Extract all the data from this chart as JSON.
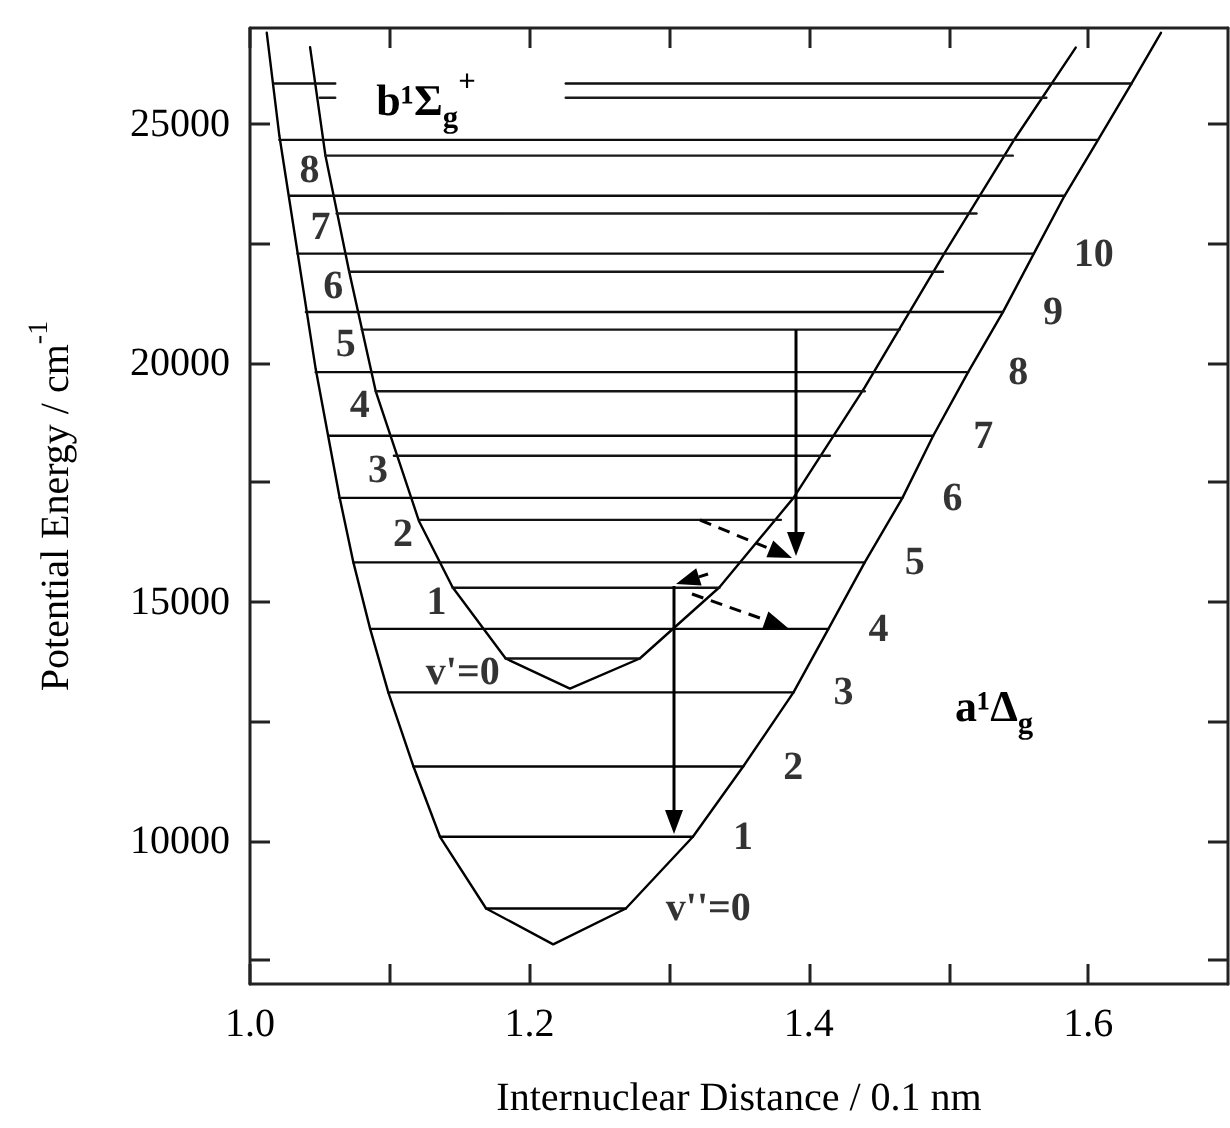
{
  "chart_data": {
    "type": "line",
    "xlabel": "Internuclear Distance / 0.1 nm",
    "ylabel": "Potential Energy / cm$^{-1}$",
    "xlim": [
      1.0,
      1.7
    ],
    "ylim": [
      7000,
      27000
    ],
    "xticks": [
      {
        "value": 1,
        "label": "1.0"
      },
      {
        "value": 1.1,
        "label": null
      },
      1.2,
      {
        "value": 1.3,
        "label": null
      },
      1.4,
      {
        "value": 1.5,
        "label": null
      },
      1.6
    ],
    "yticks": [
      {
        "value": 7500,
        "label": null
      },
      10000,
      {
        "value": 12500,
        "label": null
      },
      15000,
      {
        "value": 17500,
        "label": null
      },
      20000,
      {
        "value": 22500,
        "label": null
      },
      25000
    ],
    "grid": false,
    "marker": "none",
    "line_style": "solid",
    "series": [
      {
        "color": "#000000",
        "x": [
          1.012,
          1.021,
          1.047,
          1.064,
          1.074,
          1.086,
          1.099,
          1.117,
          1.136,
          1.169,
          1.217,
          1.269,
          1.317,
          1.353,
          1.389,
          1.414,
          1.44,
          1.467,
          1.489,
          1.514,
          1.539,
          1.561,
          1.583,
          1.607,
          1.631,
          1.652
        ],
        "values": [
          26900,
          24750,
          19870,
          17200,
          15820,
          14430,
          13100,
          11550,
          10080,
          8580,
          7830,
          8580,
          10080,
          11550,
          13100,
          14430,
          15820,
          17170,
          18470,
          19800,
          21060,
          22280,
          23490,
          24660,
          25840,
          26900
        ]
      },
      {
        "color": "#010101",
        "x": [
          1.043,
          1.054,
          1.071,
          1.09,
          1.121,
          1.145,
          1.183,
          1.229,
          1.279,
          1.336,
          1.389,
          1.44,
          1.496,
          1.546,
          1.591
        ],
        "values": [
          26600,
          24330,
          21900,
          19400,
          16680,
          15300,
          13810,
          13180,
          13810,
          15300,
          17170,
          19480,
          22240,
          24620,
          26590
        ]
      },
      {
        "color": "#020202",
        "x": [
          1.169,
          1.269
        ],
        "values": [
          8580,
          8580
        ]
      },
      {
        "color": "#030303",
        "x": [
          1.136,
          1.317
        ],
        "values": [
          10080,
          10080
        ]
      },
      {
        "color": "#040404",
        "x": [
          1.117,
          1.353
        ],
        "values": [
          11550,
          11550
        ]
      },
      {
        "color": "#050505",
        "x": [
          1.099,
          1.389
        ],
        "values": [
          13100,
          13100
        ]
      },
      {
        "color": "#060606",
        "x": [
          1.086,
          1.414
        ],
        "values": [
          14430,
          14430
        ]
      },
      {
        "color": "#070707",
        "x": [
          1.074,
          1.44
        ],
        "values": [
          15820,
          15820
        ]
      },
      {
        "color": "#080808",
        "x": [
          1.064,
          1.467
        ],
        "values": [
          17170,
          17170
        ]
      },
      {
        "color": "#090909",
        "x": [
          1.056,
          1.489
        ],
        "values": [
          18470,
          18470
        ]
      },
      {
        "color": "#0a0a0a",
        "x": [
          1.047,
          1.514
        ],
        "values": [
          19800,
          19800
        ]
      },
      {
        "color": "#0b0b0b",
        "x": [
          1.04,
          1.539
        ],
        "values": [
          21060,
          21060
        ]
      },
      {
        "color": "#0c0c0c",
        "x": [
          1.034,
          1.561
        ],
        "values": [
          22280,
          22280
        ]
      },
      {
        "color": "#0d0d0d",
        "x": [
          1.028,
          1.583
        ],
        "values": [
          23490,
          23490
        ]
      },
      {
        "color": "#0e0e0e",
        "x": [
          1.021,
          1.607
        ],
        "values": [
          24660,
          24660
        ]
      },
      {
        "color": "#0f0f0f",
        "x": [
          1.226,
          1.631
        ],
        "values": [
          25840,
          25840
        ]
      },
      {
        "color": "#101010",
        "x": [
          1.017,
          1.061
        ],
        "values": [
          25840,
          25840
        ]
      },
      {
        "color": "#111111",
        "x": [
          1.183,
          1.279
        ],
        "values": [
          13810,
          13810
        ]
      },
      {
        "color": "#121212",
        "x": [
          1.145,
          1.336
        ],
        "values": [
          15290,
          15290
        ]
      },
      {
        "color": "#131313",
        "x": [
          1.121,
          1.38
        ],
        "values": [
          16710,
          16710
        ]
      },
      {
        "color": "#141414",
        "x": [
          1.103,
          1.415
        ],
        "values": [
          18050,
          18050
        ]
      },
      {
        "color": "#151515",
        "x": [
          1.09,
          1.44
        ],
        "values": [
          19400,
          19400
        ]
      },
      {
        "color": "#161616",
        "x": [
          1.08,
          1.465
        ],
        "values": [
          20690,
          20690
        ]
      },
      {
        "color": "#171717",
        "x": [
          1.071,
          1.496
        ],
        "values": [
          21900,
          21900
        ]
      },
      {
        "color": "#181818",
        "x": [
          1.062,
          1.52
        ],
        "values": [
          23120,
          23120
        ]
      },
      {
        "color": "#191919",
        "x": [
          1.054,
          1.546
        ],
        "values": [
          24330,
          24330
        ]
      },
      {
        "color": "#1a1a1a",
        "x": [
          1.05,
          1.061
        ],
        "values": [
          25540,
          25540
        ]
      },
      {
        "color": "#1b1b1b",
        "x": [
          1.226,
          1.57
        ],
        "values": [
          25540,
          25540
        ]
      }
    ],
    "annotations": [
      "b¹Σ$_{g}$$^{+}$",
      "a¹Δ$_{g}$",
      {
        "text": "8",
        "x": 1.054,
        "y": 24330
      },
      {
        "text": "7",
        "x": 1.062,
        "y": 23120
      },
      {
        "text": "6",
        "x": 1.071,
        "y": 21900
      },
      {
        "text": "5",
        "x": 1.08,
        "y": 20690
      },
      {
        "text": "4",
        "x": 1.09,
        "y": 19400
      },
      {
        "text": "3",
        "x": 1.103,
        "y": 18050
      },
      {
        "text": "2",
        "x": 1.121,
        "y": 16710
      },
      {
        "text": "1",
        "x": 1.145,
        "y": 15290
      },
      {
        "text": "v'=0",
        "x": 1.183,
        "y": 13810
      },
      {
        "text": "10",
        "x": 1.561,
        "y": 22280
      },
      {
        "text": "9",
        "x": 1.539,
        "y": 21060
      },
      {
        "text": "8",
        "x": 1.514,
        "y": 19800
      },
      {
        "text": "7",
        "x": 1.489,
        "y": 18470
      },
      {
        "text": "6",
        "x": 1.467,
        "y": 17170
      },
      {
        "text": "5",
        "x": 1.44,
        "y": 15820
      },
      {
        "text": "4",
        "x": 1.414,
        "y": 14430
      },
      {
        "text": "3",
        "x": 1.389,
        "y": 13100
      },
      {
        "text": "2",
        "x": 1.353,
        "y": 11550
      },
      {
        "text": "1",
        "x": 1.317,
        "y": 10080
      },
      {
        "text": "v''=0",
        "x": 1.269,
        "y": 8580
      }
    ]
  }
}
